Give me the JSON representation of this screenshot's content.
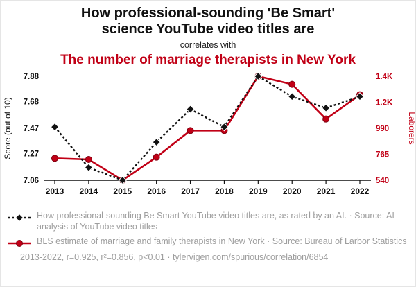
{
  "colors": {
    "red": "#c10016",
    "red_dark": "#7f0010",
    "black": "#111111",
    "gray_text": "#9e9e9e"
  },
  "header": {
    "title_line1": "How professional-sounding 'Be Smart'",
    "title_line2": "science YouTube video titles are",
    "connector": "correlates with",
    "red_title": "The number of marriage therapists in New York"
  },
  "chart_data": {
    "type": "line",
    "x": [
      2013,
      2014,
      2015,
      2016,
      2017,
      2018,
      2019,
      2020,
      2021,
      2022
    ],
    "series": [
      {
        "name": "How professional-sounding Be Smart YouTube video titles are, as rated by an AI.",
        "axis": "left",
        "style": "dashed-diamond",
        "values": [
          7.48,
          7.16,
          7.06,
          7.36,
          7.62,
          7.48,
          7.88,
          7.72,
          7.63,
          7.72
        ]
      },
      {
        "name": "BLS estimate of marriage and family therapists in New York",
        "axis": "right",
        "style": "solid-circle",
        "values": [
          730,
          720,
          540,
          740,
          970,
          970,
          1440,
          1370,
          1070,
          1280
        ]
      }
    ],
    "left_axis": {
      "label": "Score (out of 10)",
      "min": 7.06,
      "max": 7.88,
      "ticks": [
        7.06,
        7.27,
        7.47,
        7.68,
        7.88
      ],
      "tick_labels": [
        "7.06",
        "7.27",
        "7.47",
        "7.68",
        "7.88"
      ]
    },
    "right_axis": {
      "label": "Laborers",
      "min": 540,
      "max": 1440,
      "ticks": [
        540,
        765,
        990,
        1215,
        1440
      ],
      "tick_labels": [
        "540",
        "765",
        "990",
        "1.2K",
        "1.4K"
      ]
    },
    "grid": false,
    "legend_position": "bottom"
  },
  "legend": [
    {
      "label": "How professional-sounding Be Smart YouTube video titles are, as rated by an AI. · Source: AI analysis of YouTube video titles"
    },
    {
      "label": "BLS estimate of marriage and family therapists in New York · Source: Bureau of Larbor Statistics"
    }
  ],
  "footer": {
    "stats": "2013-2022, r=0.925, r²=0.856, p<0.01 · tylervigen.com/spurious/correlation/6854"
  }
}
